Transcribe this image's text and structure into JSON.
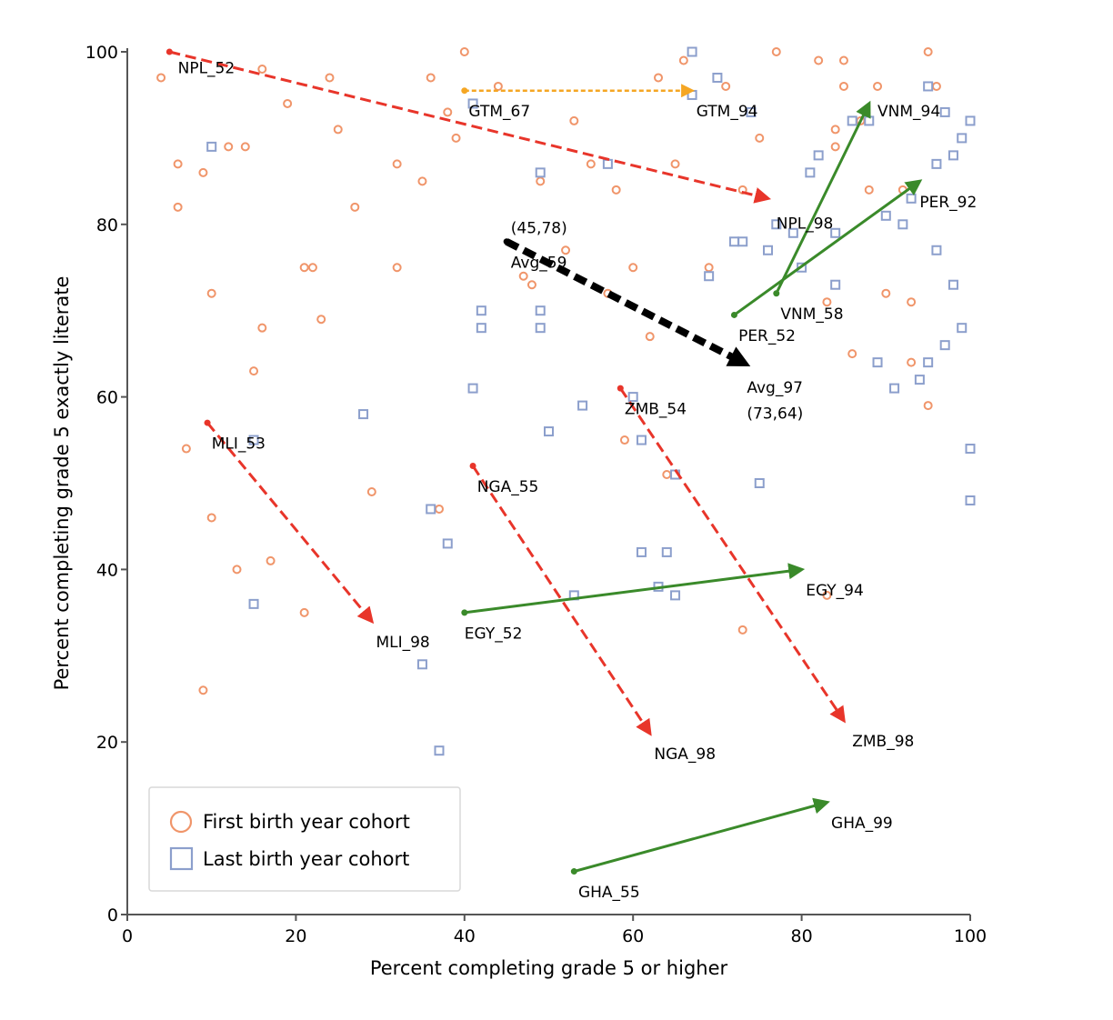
{
  "chart_data": {
    "type": "scatter",
    "xlabel": "Percent completing grade 5 or higher",
    "ylabel": "Percent completing grade 5 exactly literate",
    "xlim": [
      0,
      100
    ],
    "ylim": [
      0,
      100
    ],
    "xticks": [
      0,
      20,
      40,
      60,
      80,
      100
    ],
    "yticks": [
      0,
      20,
      40,
      60,
      80,
      100
    ],
    "grid": false,
    "legend_position": "bottom-left",
    "colors": {
      "first_marker": "#f0956a",
      "last_marker": "#8c9fcc",
      "decline": "#e8352a",
      "increase": "#3a8a2a",
      "flat": "#f5a623",
      "average": "#000000"
    },
    "series": [
      {
        "name": "First birth year cohort",
        "marker": "circle",
        "x": [
          4,
          6,
          6,
          7,
          9,
          9,
          10,
          10,
          12,
          13,
          14,
          15,
          16,
          16,
          17,
          19,
          21,
          21,
          22,
          23,
          24,
          25,
          27,
          29,
          32,
          32,
          35,
          36,
          37,
          38,
          39,
          40,
          44,
          47,
          48,
          49,
          52,
          53,
          55,
          57,
          58,
          59,
          60,
          62,
          63,
          64,
          65,
          66,
          69,
          71,
          73,
          73,
          75,
          77,
          82,
          83,
          83,
          84,
          84,
          85,
          85,
          86,
          87,
          88,
          88,
          89,
          90,
          92,
          93,
          93,
          95,
          95,
          96,
          96
        ],
        "y": [
          97,
          87,
          82,
          54,
          86,
          26,
          46,
          72,
          89,
          40,
          89,
          63,
          98,
          68,
          41,
          94,
          75,
          35,
          75,
          69,
          97,
          91,
          82,
          49,
          87,
          75,
          85,
          97,
          47,
          93,
          90,
          100,
          96,
          74,
          73,
          85,
          77,
          92,
          87,
          72,
          84,
          55,
          75,
          67,
          97,
          51,
          87,
          99,
          75,
          96,
          84,
          33,
          90,
          100,
          99,
          37,
          71,
          89,
          91,
          96,
          99,
          65,
          92,
          92,
          84,
          96,
          72,
          84,
          64,
          71,
          59,
          100,
          96,
          77
        ],
        "labels": [
          "NPL_52",
          "GTM_67",
          "VNM_58",
          "PER_52",
          "ZMB_54",
          "NGA_55",
          "MLI_53",
          "EGY_52",
          "GHA_55"
        ]
      },
      {
        "name": "Last birth year cohort",
        "marker": "square",
        "x": [
          10,
          15,
          15,
          28,
          35,
          36,
          37,
          38,
          41,
          41,
          42,
          42,
          49,
          49,
          49,
          50,
          53,
          54,
          57,
          60,
          61,
          61,
          63,
          64,
          65,
          65,
          67,
          67,
          69,
          70,
          72,
          73,
          74,
          75,
          76,
          77,
          79,
          80,
          81,
          82,
          84,
          84,
          86,
          88,
          89,
          90,
          91,
          92,
          93,
          94,
          95,
          95,
          96,
          96,
          97,
          97,
          98,
          98,
          99,
          99,
          100,
          100,
          100
        ],
        "y": [
          89,
          55,
          36,
          58,
          29,
          47,
          19,
          43,
          94,
          61,
          70,
          68,
          86,
          70,
          68,
          56,
          37,
          59,
          87,
          60,
          55,
          42,
          38,
          42,
          51,
          37,
          100,
          95,
          74,
          97,
          78,
          78,
          93,
          50,
          77,
          80,
          79,
          75,
          86,
          88,
          73,
          79,
          92,
          92,
          64,
          81,
          61,
          80,
          83,
          62,
          96,
          64,
          77,
          87,
          66,
          93,
          73,
          88,
          68,
          90,
          92,
          54,
          48
        ],
        "labels": [
          "GTM_94",
          "NPL_98",
          "VNM_94",
          "PER_92",
          "ZMB_98",
          "NGA_98",
          "MLI_98",
          "EGY_94",
          "GHA_99"
        ]
      }
    ],
    "trajectories": [
      {
        "from": "NPL_52",
        "to": "NPL_98",
        "x0": 5,
        "y0": 100,
        "x1": 76,
        "y1": 83,
        "trend": "decline"
      },
      {
        "from": "GTM_67",
        "to": "GTM_94",
        "x0": 40,
        "y0": 95.5,
        "x1": 67,
        "y1": 95.5,
        "trend": "flat"
      },
      {
        "from": "VNM_58",
        "to": "VNM_94",
        "x0": 77,
        "y0": 72,
        "x1": 88,
        "y1": 94,
        "trend": "increase"
      },
      {
        "from": "PER_52",
        "to": "PER_92",
        "x0": 72,
        "y0": 69.5,
        "x1": 94,
        "y1": 85,
        "trend": "increase"
      },
      {
        "from": "ZMB_54",
        "to": "ZMB_98",
        "x0": 58.5,
        "y0": 61,
        "x1": 85,
        "y1": 22.5,
        "trend": "decline"
      },
      {
        "from": "NGA_55",
        "to": "NGA_98",
        "x0": 41,
        "y0": 52,
        "x1": 62,
        "y1": 21,
        "trend": "decline"
      },
      {
        "from": "MLI_53",
        "to": "MLI_98",
        "x0": 9.5,
        "y0": 57,
        "x1": 29,
        "y1": 34,
        "trend": "decline"
      },
      {
        "from": "EGY_52",
        "to": "EGY_94",
        "x0": 40,
        "y0": 35,
        "x1": 80,
        "y1": 40,
        "trend": "increase"
      },
      {
        "from": "GHA_55",
        "to": "GHA_99",
        "x0": 53,
        "y0": 5,
        "x1": 83,
        "y1": 13,
        "trend": "increase"
      },
      {
        "from": "Avg_59",
        "to": "Avg_97",
        "x0": 45,
        "y0": 78,
        "x1": 73,
        "y1": 64,
        "trend": "average"
      }
    ],
    "annotations": [
      {
        "text": "(45,78)",
        "x": 45,
        "y": 78
      },
      {
        "text": "(73,64)",
        "x": 73,
        "y": 64
      }
    ],
    "trajectory_labels": [
      {
        "text": "NPL_52",
        "x": 6,
        "y": 97.5
      },
      {
        "text": "NPL_98",
        "x": 77,
        "y": 79.5
      },
      {
        "text": "GTM_67",
        "x": 40.5,
        "y": 92.5
      },
      {
        "text": "GTM_94",
        "x": 67.5,
        "y": 92.5
      },
      {
        "text": "VNM_94",
        "x": 89,
        "y": 92.5
      },
      {
        "text": "VNM_58",
        "x": 77.5,
        "y": 69
      },
      {
        "text": "PER_92",
        "x": 94,
        "y": 82
      },
      {
        "text": "PER_52",
        "x": 72.5,
        "y": 66.5
      },
      {
        "text": "Avg_59",
        "x": 45.5,
        "y": 75
      },
      {
        "text": "Avg_97",
        "x": 73.5,
        "y": 60.5
      },
      {
        "text": "ZMB_54",
        "x": 59,
        "y": 58
      },
      {
        "text": "ZMB_98",
        "x": 86,
        "y": 19.5
      },
      {
        "text": "NGA_55",
        "x": 41.5,
        "y": 49
      },
      {
        "text": "NGA_98",
        "x": 62.5,
        "y": 18
      },
      {
        "text": "MLI_53",
        "x": 10,
        "y": 54
      },
      {
        "text": "MLI_98",
        "x": 29.5,
        "y": 31
      },
      {
        "text": "EGY_94",
        "x": 80.5,
        "y": 37
      },
      {
        "text": "EGY_52",
        "x": 40,
        "y": 32
      },
      {
        "text": "GHA_99",
        "x": 83.5,
        "y": 10
      },
      {
        "text": "GHA_55",
        "x": 53.5,
        "y": 2
      }
    ]
  }
}
